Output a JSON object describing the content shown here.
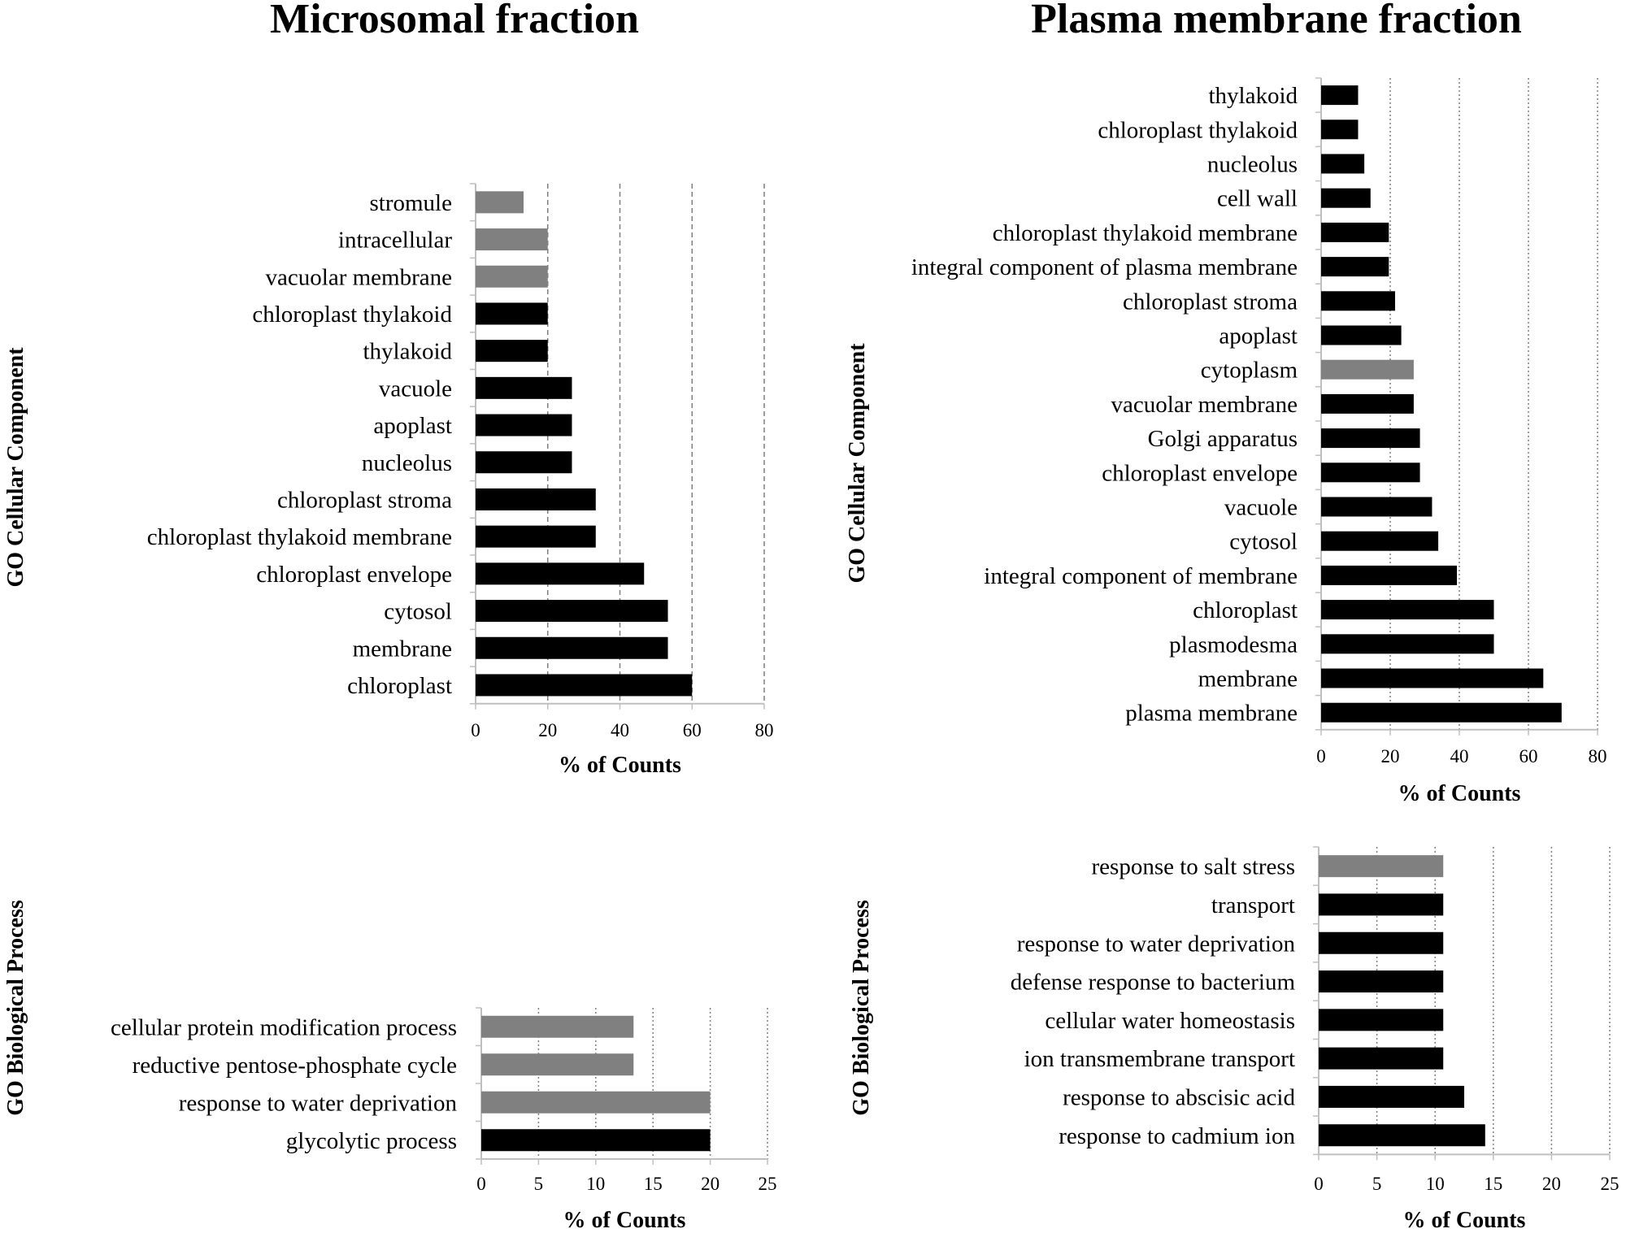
{
  "titles": {
    "left": "Microsomal fraction",
    "right": "Plasma membrane fraction"
  },
  "colors": {
    "black": "#000000",
    "gray": "#808080",
    "grid": "#7f7f7f",
    "axis": "#bfbfbf"
  },
  "chart_data": [
    {
      "type": "bar",
      "orientation": "horizontal",
      "panel": "Microsomal fraction",
      "ylabel": "GO Cellular Component",
      "xlabel": "% of Counts",
      "xlim": [
        0,
        80
      ],
      "xticks": [
        0,
        20,
        40,
        60,
        80
      ],
      "grid": "dashed",
      "categories": [
        "stromule",
        "intracellular",
        "vacuolar membrane",
        "chloroplast thylakoid",
        "thylakoid",
        "vacuole",
        "apoplast",
        "nucleolus",
        "chloroplast stroma",
        "chloroplast thylakoid membrane",
        "chloroplast envelope",
        "cytosol",
        "membrane",
        "chloroplast"
      ],
      "values": [
        13.3,
        20,
        20,
        20,
        20,
        26.7,
        26.7,
        26.7,
        33.3,
        33.3,
        46.7,
        53.3,
        53.3,
        60
      ],
      "bar_color": [
        "gray",
        "gray",
        "gray",
        "black",
        "black",
        "black",
        "black",
        "black",
        "black",
        "black",
        "black",
        "black",
        "black",
        "black"
      ]
    },
    {
      "type": "bar",
      "orientation": "horizontal",
      "panel": "Plasma membrane fraction",
      "ylabel": "GO Cellular Component",
      "xlabel": "% of Counts",
      "xlim": [
        0,
        80
      ],
      "xticks": [
        0,
        20,
        40,
        60,
        80
      ],
      "grid": "dotted",
      "categories": [
        "thylakoid",
        "chloroplast thylakoid",
        "nucleolus",
        "cell wall",
        "chloroplast thylakoid membrane",
        "integral component of plasma membrane",
        "chloroplast stroma",
        "apoplast",
        "cytoplasm",
        "vacuolar membrane",
        "Golgi apparatus",
        "chloroplast envelope",
        "vacuole",
        "cytosol",
        "integral component of membrane",
        "chloroplast",
        "plasmodesma",
        "membrane",
        "plasma membrane"
      ],
      "values": [
        10.7,
        10.7,
        12.5,
        14.3,
        19.6,
        19.6,
        21.4,
        23.2,
        26.8,
        26.8,
        28.6,
        28.6,
        32.1,
        33.9,
        39.3,
        50,
        50,
        64.3,
        69.6
      ],
      "bar_color": [
        "black",
        "black",
        "black",
        "black",
        "black",
        "black",
        "black",
        "black",
        "gray",
        "black",
        "black",
        "black",
        "black",
        "black",
        "black",
        "black",
        "black",
        "black",
        "black"
      ]
    },
    {
      "type": "bar",
      "orientation": "horizontal",
      "panel": "Microsomal fraction",
      "ylabel": "GO Biological Process",
      "xlabel": "% of Counts",
      "xlim": [
        0,
        25
      ],
      "xticks": [
        0,
        5,
        10,
        15,
        20,
        25
      ],
      "grid": "dotted",
      "categories": [
        "cellular protein modification process",
        "reductive pentose-phosphate cycle",
        "response to water deprivation",
        "glycolytic process"
      ],
      "values": [
        13.3,
        13.3,
        20,
        20
      ],
      "bar_color": [
        "gray",
        "gray",
        "gray",
        "black"
      ]
    },
    {
      "type": "bar",
      "orientation": "horizontal",
      "panel": "Plasma membrane fraction",
      "ylabel": "GO Biological Process",
      "xlabel": "% of Counts",
      "xlim": [
        0,
        25
      ],
      "xticks": [
        0,
        5,
        10,
        15,
        20,
        25
      ],
      "grid": "dotted",
      "categories": [
        "response to salt stress",
        "transport",
        "response to water deprivation",
        "defense response to bacterium",
        "cellular water homeostasis",
        "ion transmembrane transport",
        "response to abscisic acid",
        "response to cadmium ion"
      ],
      "values": [
        10.7,
        10.7,
        10.7,
        10.7,
        10.7,
        10.7,
        12.5,
        14.3
      ],
      "bar_color": [
        "gray",
        "black",
        "black",
        "black",
        "black",
        "black",
        "black",
        "black"
      ]
    }
  ]
}
